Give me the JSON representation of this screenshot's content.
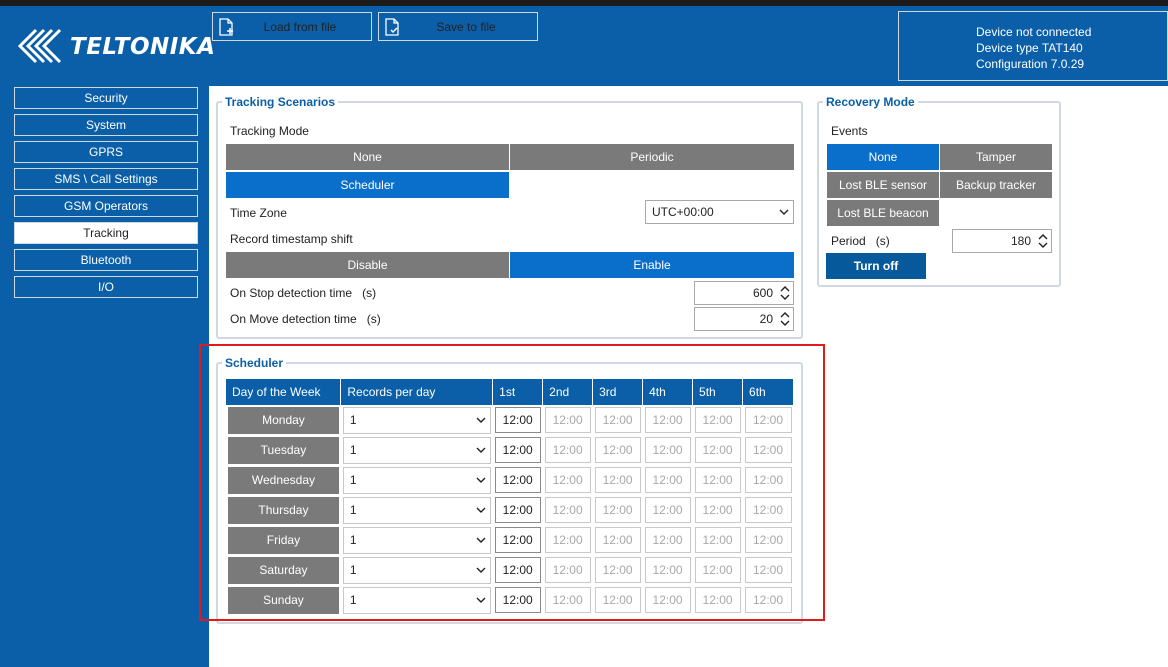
{
  "header": {
    "logo_text": "TELTONIKA",
    "load_button": "Load from file",
    "save_button": "Save to file",
    "device_status": "Device not connected",
    "device_type": "Device type  TAT140",
    "configuration": "Configuration  7.0.29"
  },
  "sidebar": {
    "items": [
      {
        "label": "Security"
      },
      {
        "label": "System"
      },
      {
        "label": "GPRS"
      },
      {
        "label": "SMS \\ Call Settings"
      },
      {
        "label": "GSM Operators"
      },
      {
        "label": "Tracking"
      },
      {
        "label": "Bluetooth"
      },
      {
        "label": "I/O"
      }
    ],
    "active": "Tracking"
  },
  "tracking": {
    "title": "Tracking Scenarios",
    "mode_label": "Tracking Mode",
    "mode_none": "None",
    "mode_periodic": "Periodic",
    "mode_scheduler": "Scheduler",
    "selected_mode": "Scheduler",
    "timezone_label": "Time Zone",
    "timezone_value": "UTC+00:00",
    "shift_label": "Record timestamp shift",
    "shift_disable": "Disable",
    "shift_enable": "Enable",
    "shift_selected": "Enable",
    "stop_label": "On Stop detection time",
    "stop_unit": "(s)",
    "stop_value": "600",
    "move_label": "On Move detection time",
    "move_unit": "(s)",
    "move_value": "20"
  },
  "recovery": {
    "title": "Recovery Mode",
    "events_label": "Events",
    "ev_none": "None",
    "ev_tamper": "Tamper",
    "ev_lost_sensor": "Lost BLE sensor",
    "ev_backup": "Backup tracker",
    "ev_lost_beacon": "Lost BLE beacon",
    "selected_event": "None",
    "period_label": "Period",
    "period_unit": "(s)",
    "period_value": "180",
    "turn_off": "Turn off"
  },
  "scheduler": {
    "title": "Scheduler",
    "columns": [
      "Day of the Week",
      "Records per day",
      "1st",
      "2nd",
      "3rd",
      "4th",
      "5th",
      "6th"
    ],
    "rows": [
      {
        "day": "Monday",
        "records": "1",
        "times": [
          "12:00",
          "12:00",
          "12:00",
          "12:00",
          "12:00",
          "12:00"
        ]
      },
      {
        "day": "Tuesday",
        "records": "1",
        "times": [
          "12:00",
          "12:00",
          "12:00",
          "12:00",
          "12:00",
          "12:00"
        ]
      },
      {
        "day": "Wednesday",
        "records": "1",
        "times": [
          "12:00",
          "12:00",
          "12:00",
          "12:00",
          "12:00",
          "12:00"
        ]
      },
      {
        "day": "Thursday",
        "records": "1",
        "times": [
          "12:00",
          "12:00",
          "12:00",
          "12:00",
          "12:00",
          "12:00"
        ]
      },
      {
        "day": "Friday",
        "records": "1",
        "times": [
          "12:00",
          "12:00",
          "12:00",
          "12:00",
          "12:00",
          "12:00"
        ]
      },
      {
        "day": "Saturday",
        "records": "1",
        "times": [
          "12:00",
          "12:00",
          "12:00",
          "12:00",
          "12:00",
          "12:00"
        ]
      },
      {
        "day": "Sunday",
        "records": "1",
        "times": [
          "12:00",
          "12:00",
          "12:00",
          "12:00",
          "12:00",
          "12:00"
        ]
      }
    ]
  },
  "colors": {
    "brand_blue": "#0a5fa8",
    "selected_blue": "#0a6ecb",
    "segment_gray": "#7a7a7a",
    "highlight_red": "#e01b1b"
  }
}
